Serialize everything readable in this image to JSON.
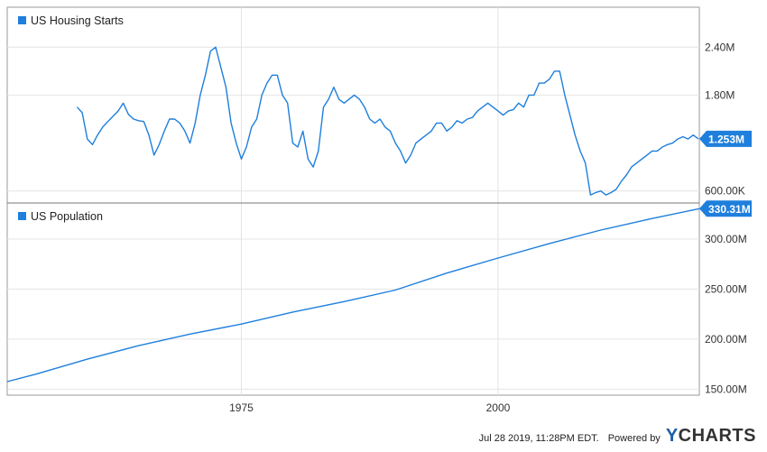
{
  "chart_data": [
    {
      "type": "line",
      "series": [
        {
          "name": "US Housing Starts",
          "color": "#1e7fdc"
        }
      ],
      "legend": "top-left",
      "y_ticks": [
        {
          "value": 2400000,
          "label": "2.40M"
        },
        {
          "value": 1800000,
          "label": "1.80M"
        },
        {
          "value": 600000,
          "label": "600.00K"
        }
      ],
      "last_value_label": "1.253M",
      "last_value": 1253000,
      "ylim": [
        450000,
        2900000
      ],
      "xlim": [
        1959,
        2019.6
      ],
      "grid": true,
      "x": [
        1959.0,
        1959.5,
        1960.0,
        1960.5,
        1961.0,
        1961.5,
        1962.0,
        1963.0,
        1963.5,
        1964.0,
        1964.5,
        1965.0,
        1965.5,
        1966.0,
        1966.5,
        1967.0,
        1967.5,
        1968.0,
        1968.5,
        1969.0,
        1969.5,
        1970.0,
        1970.5,
        1971.0,
        1971.5,
        1972.0,
        1972.5,
        1973.0,
        1973.5,
        1974.0,
        1974.5,
        1975.0,
        1975.5,
        1976.0,
        1976.5,
        1977.0,
        1977.5,
        1978.0,
        1978.5,
        1979.0,
        1979.5,
        1980.0,
        1980.5,
        1981.0,
        1981.5,
        1982.0,
        1982.5,
        1983.0,
        1983.5,
        1984.0,
        1984.5,
        1985.0,
        1985.5,
        1986.0,
        1986.5,
        1987.0,
        1987.5,
        1988.0,
        1988.5,
        1989.0,
        1989.5,
        1990.0,
        1990.5,
        1991.0,
        1991.5,
        1992.0,
        1992.5,
        1993.0,
        1993.5,
        1994.0,
        1994.5,
        1995.0,
        1995.5,
        1996.0,
        1996.5,
        1997.0,
        1997.5,
        1998.0,
        1998.5,
        1999.0,
        1999.5,
        2000.0,
        2000.5,
        2001.0,
        2001.5,
        2002.0,
        2002.5,
        2003.0,
        2003.5,
        2004.0,
        2004.5,
        2005.0,
        2005.5,
        2006.0,
        2006.5,
        2007.0,
        2007.5,
        2008.0,
        2008.5,
        2009.0,
        2009.5,
        2010.0,
        2010.5,
        2011.0,
        2011.5,
        2012.0,
        2012.5,
        2013.0,
        2013.5,
        2014.0,
        2014.5,
        2015.0,
        2015.5,
        2016.0,
        2016.5,
        2017.0,
        2017.5,
        2018.0,
        2018.5,
        2019.0,
        2019.5
      ],
      "y": [
        1650000,
        1580000,
        1250000,
        1180000,
        1300000,
        1400000,
        1470000,
        1600000,
        1700000,
        1560000,
        1500000,
        1480000,
        1470000,
        1300000,
        1050000,
        1180000,
        1350000,
        1500000,
        1500000,
        1450000,
        1350000,
        1200000,
        1450000,
        1800000,
        2050000,
        2350000,
        2400000,
        2150000,
        1900000,
        1450000,
        1200000,
        1000000,
        1150000,
        1400000,
        1500000,
        1800000,
        1950000,
        2050000,
        2050000,
        1800000,
        1700000,
        1200000,
        1150000,
        1350000,
        1000000,
        900000,
        1100000,
        1650000,
        1750000,
        1900000,
        1750000,
        1700000,
        1750000,
        1800000,
        1750000,
        1650000,
        1500000,
        1450000,
        1500000,
        1400000,
        1350000,
        1200000,
        1100000,
        950000,
        1050000,
        1200000,
        1250000,
        1300000,
        1350000,
        1450000,
        1450000,
        1350000,
        1400000,
        1480000,
        1450000,
        1500000,
        1520000,
        1600000,
        1650000,
        1700000,
        1650000,
        1600000,
        1550000,
        1600000,
        1620000,
        1700000,
        1650000,
        1800000,
        1800000,
        1950000,
        1950000,
        2000000,
        2100000,
        2100000,
        1800000,
        1550000,
        1300000,
        1100000,
        950000,
        550000,
        580000,
        600000,
        550000,
        580000,
        620000,
        720000,
        800000,
        900000,
        950000,
        1000000,
        1050000,
        1100000,
        1100000,
        1150000,
        1180000,
        1200000,
        1250000,
        1280000,
        1250000,
        1300000,
        1253000
      ]
    },
    {
      "type": "line",
      "series": [
        {
          "name": "US Population",
          "color": "#1e7fdc"
        }
      ],
      "legend": "top-left",
      "y_ticks": [
        {
          "value": 300000000,
          "label": "300.00M"
        },
        {
          "value": 250000000,
          "label": "250.00M"
        },
        {
          "value": 200000000,
          "label": "200.00M"
        },
        {
          "value": 150000000,
          "label": "150.00M"
        }
      ],
      "last_value_label": "330.31M",
      "last_value": 330310000,
      "ylim": [
        144000000,
        336000000
      ],
      "xlim": [
        1952.2,
        2019.6
      ],
      "x_ticks": [
        {
          "value": 1975,
          "label": "1975"
        },
        {
          "value": 2000,
          "label": "2000"
        }
      ],
      "grid": true,
      "x": [
        1952.2,
        1955,
        1960,
        1965,
        1970,
        1975,
        1980,
        1985,
        1990,
        1995,
        2000,
        2005,
        2010,
        2015,
        2019.6
      ],
      "y": [
        157500000,
        165000000,
        180000000,
        193500000,
        205000000,
        215000000,
        227000000,
        237500000,
        249000000,
        266000000,
        281000000,
        295500000,
        309000000,
        320500000,
        330310000
      ]
    }
  ],
  "footer": {
    "timestamp": "Jul 28 2019, 11:28PM EDT.",
    "powered_by": "Powered by",
    "brand_y": "Y",
    "brand_rest": "CHARTS"
  }
}
